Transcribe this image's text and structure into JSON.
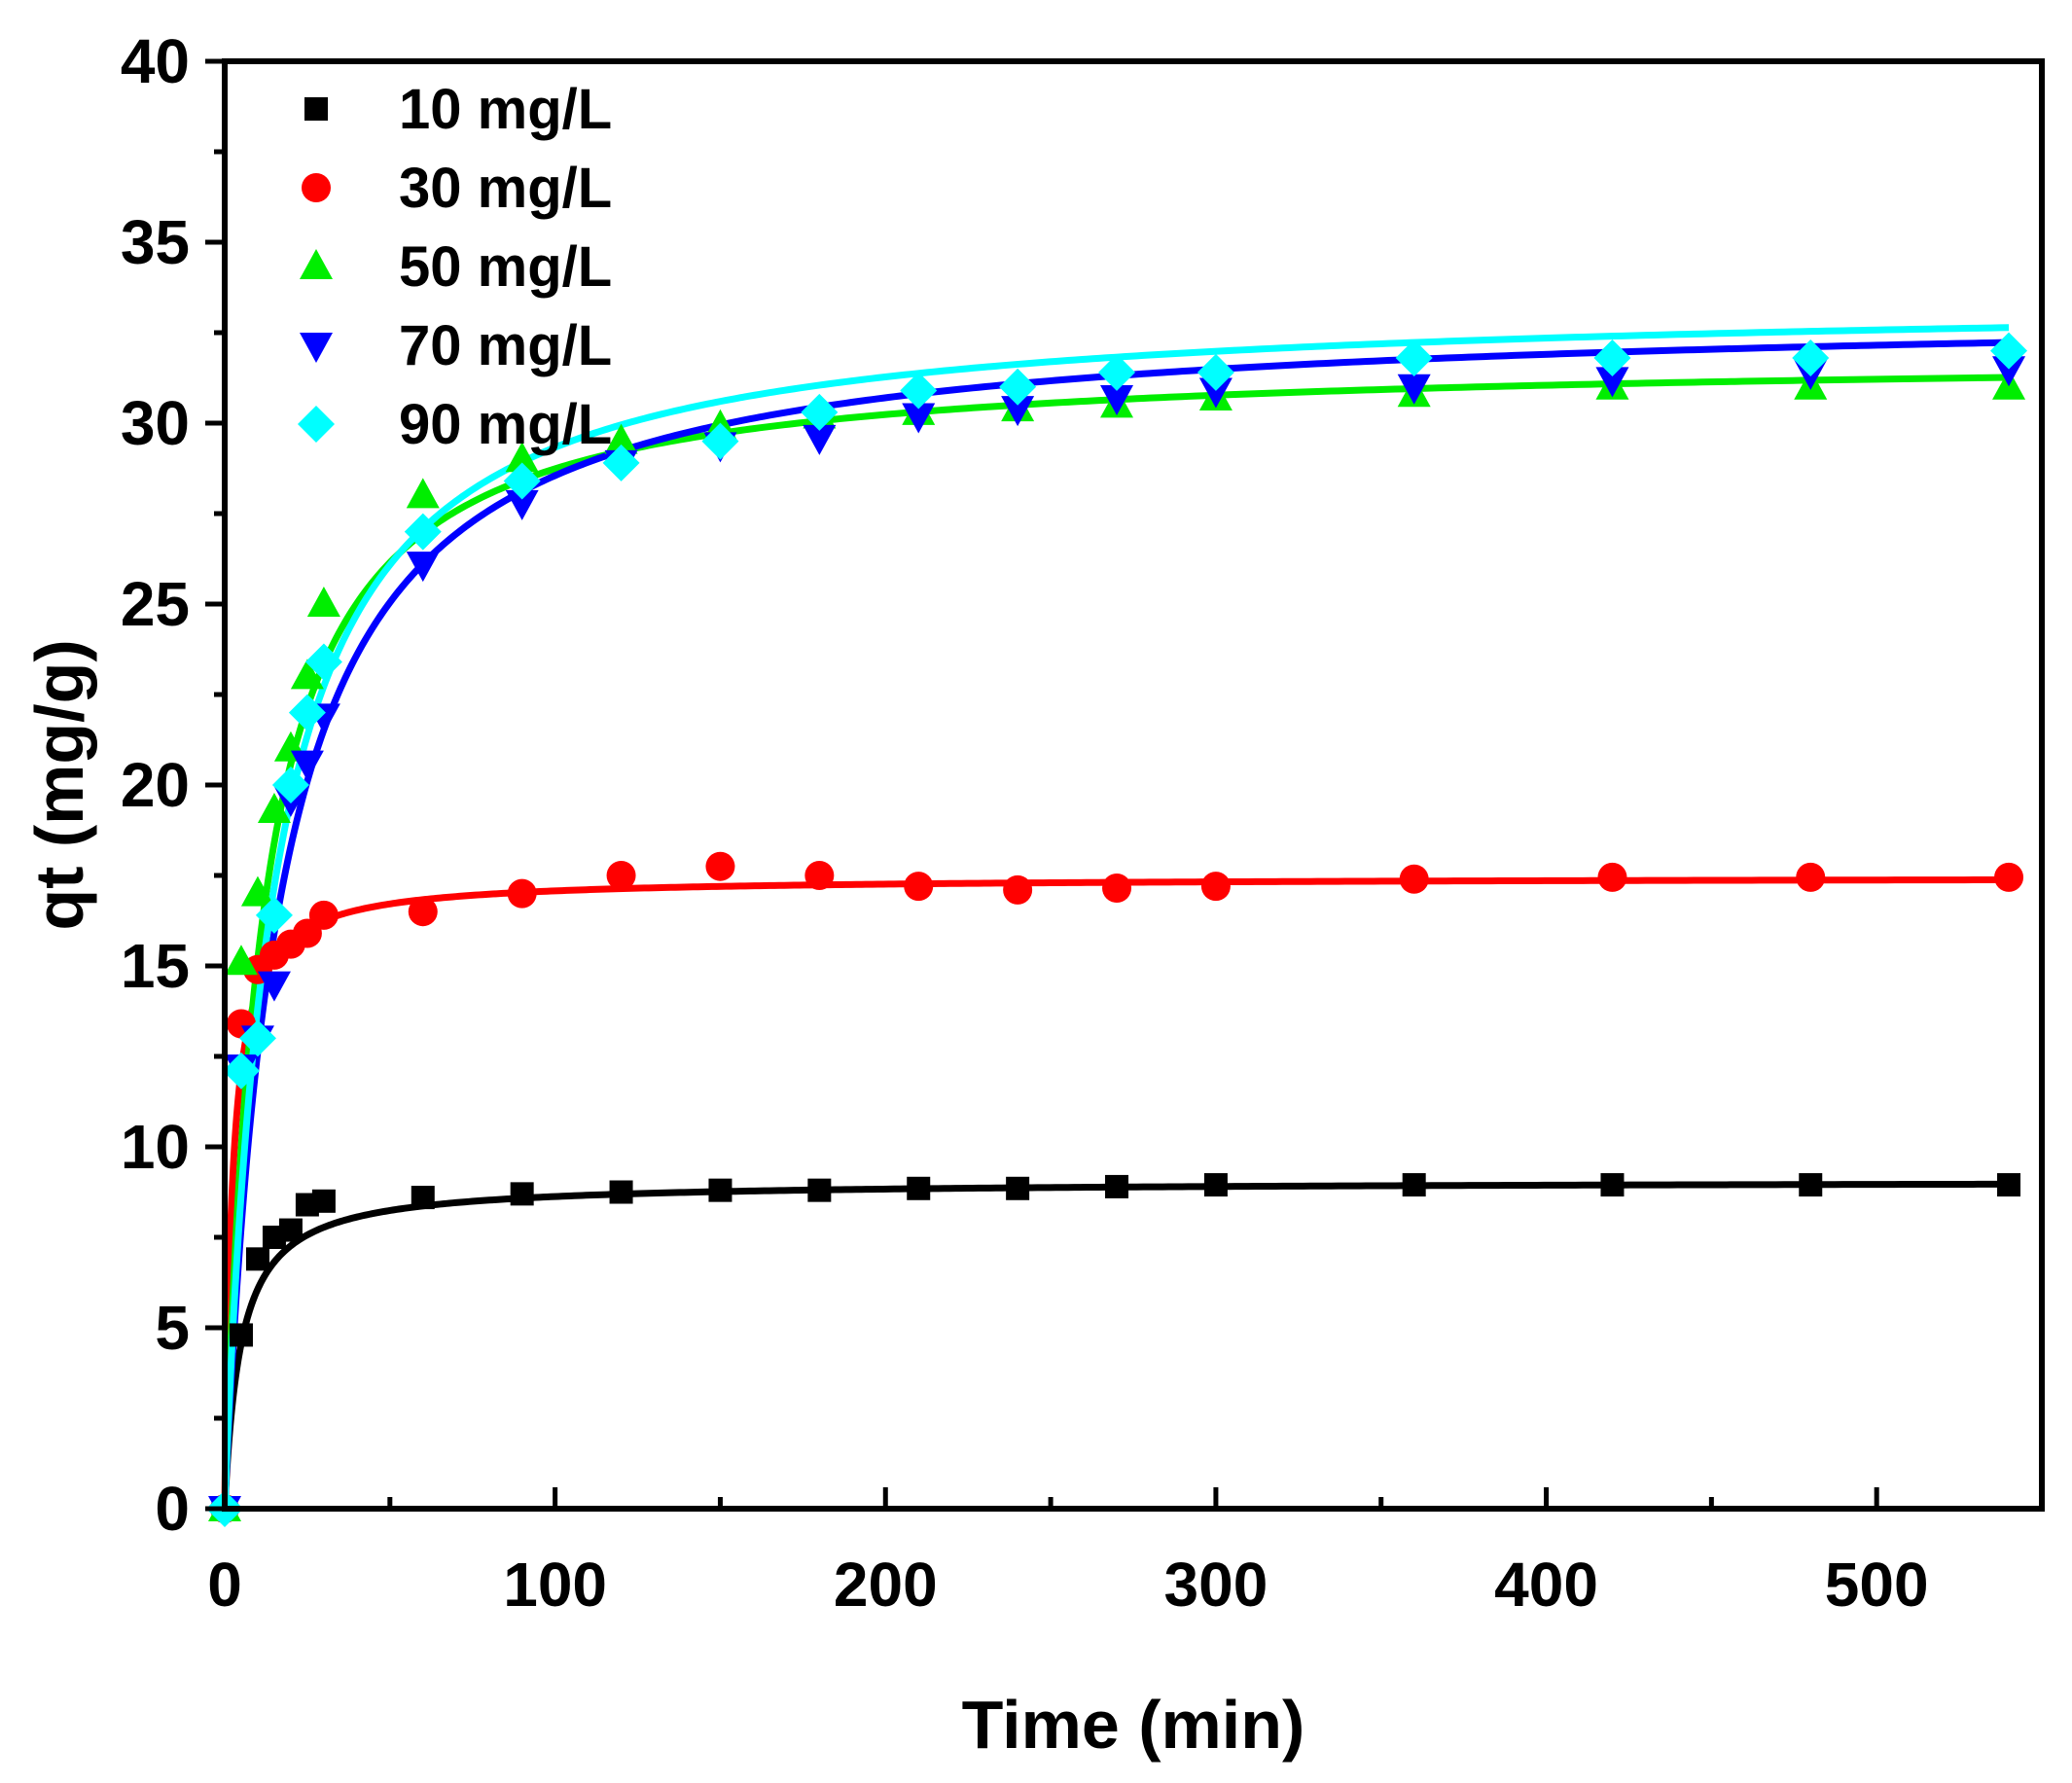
{
  "chart_data": {
    "type": "scatter",
    "title": "",
    "xlabel": "Time (min)",
    "ylabel": "qt (mg/g)",
    "xlim": [
      0,
      550
    ],
    "ylim": [
      0,
      40
    ],
    "x_ticks": [
      0,
      100,
      200,
      300,
      400,
      500
    ],
    "y_ticks": [
      0,
      5,
      10,
      15,
      20,
      25,
      30,
      35,
      40
    ],
    "x_tick_labels": [
      "0",
      "100",
      "200",
      "300",
      "400",
      "500"
    ],
    "y_tick_labels": [
      "0",
      "5",
      "10",
      "15",
      "20",
      "25",
      "30",
      "35",
      "40"
    ],
    "legend_position": "top-left",
    "grid": false,
    "fit_curves": true,
    "series": [
      {
        "name": "10 mg/L",
        "marker": "square",
        "color": "#000000",
        "x": [
          0,
          5,
          10,
          15,
          20,
          25,
          30,
          60,
          90,
          120,
          150,
          180,
          210,
          240,
          270,
          300,
          360,
          420,
          480,
          540
        ],
        "y": [
          0,
          4.8,
          6.9,
          7.5,
          7.7,
          8.4,
          8.5,
          8.6,
          8.7,
          8.75,
          8.8,
          8.8,
          8.85,
          8.85,
          8.9,
          8.95,
          8.95,
          8.95,
          8.95,
          8.95
        ],
        "fit": {
          "qe": 9.05,
          "k": 0.0225
        }
      },
      {
        "name": "30 mg/L",
        "marker": "circle",
        "color": "#ff0000",
        "x": [
          0,
          5,
          10,
          15,
          20,
          25,
          30,
          60,
          90,
          120,
          150,
          180,
          210,
          240,
          270,
          300,
          360,
          420,
          480,
          540
        ],
        "y": [
          0,
          13.4,
          14.9,
          15.3,
          15.6,
          15.9,
          16.4,
          16.5,
          17.0,
          17.5,
          17.75,
          17.5,
          17.2,
          17.1,
          17.15,
          17.2,
          17.4,
          17.45,
          17.45,
          17.45
        ],
        "fit": {
          "qe": 17.45,
          "k": 0.026
        }
      },
      {
        "name": "50 mg/L",
        "marker": "triangle-up",
        "color": "#00ee00",
        "x": [
          0,
          5,
          10,
          15,
          20,
          25,
          30,
          60,
          90,
          120,
          150,
          180,
          210,
          240,
          270,
          300,
          360,
          420,
          480,
          540
        ],
        "y": [
          0,
          15.1,
          17.0,
          19.3,
          21.0,
          23.0,
          25.0,
          28.0,
          29.0,
          29.5,
          29.9,
          30.2,
          30.3,
          30.4,
          30.5,
          30.7,
          30.8,
          31.0,
          31.0,
          31.0
        ],
        "fit": {
          "qe": 31.9,
          "k": 0.00285
        }
      },
      {
        "name": "70 mg/L",
        "marker": "triangle-down",
        "color": "#0000ff",
        "x": [
          0,
          5,
          10,
          15,
          20,
          25,
          30,
          60,
          90,
          120,
          150,
          180,
          210,
          240,
          270,
          300,
          360,
          420,
          480,
          540
        ],
        "y": [
          0,
          12.2,
          13.0,
          14.5,
          19.6,
          20.6,
          21.9,
          26.1,
          27.8,
          28.9,
          29.4,
          29.6,
          30.2,
          30.4,
          30.7,
          30.9,
          31.0,
          31.2,
          31.4,
          31.5
        ],
        "fit": {
          "qe": 33.2,
          "k": 0.00185
        }
      },
      {
        "name": "90 mg/L",
        "marker": "diamond",
        "color": "#00ffff",
        "x": [
          0,
          5,
          10,
          15,
          20,
          25,
          30,
          60,
          90,
          120,
          150,
          180,
          210,
          240,
          270,
          300,
          360,
          420,
          480,
          540
        ],
        "y": [
          0,
          12.1,
          13.0,
          16.4,
          20.0,
          22.0,
          23.4,
          27.0,
          28.4,
          28.9,
          29.5,
          30.3,
          30.9,
          31.0,
          31.4,
          31.4,
          31.8,
          31.8,
          31.8,
          32.0
        ],
        "fit": {
          "qe": 33.5,
          "k": 0.0021
        }
      }
    ]
  }
}
